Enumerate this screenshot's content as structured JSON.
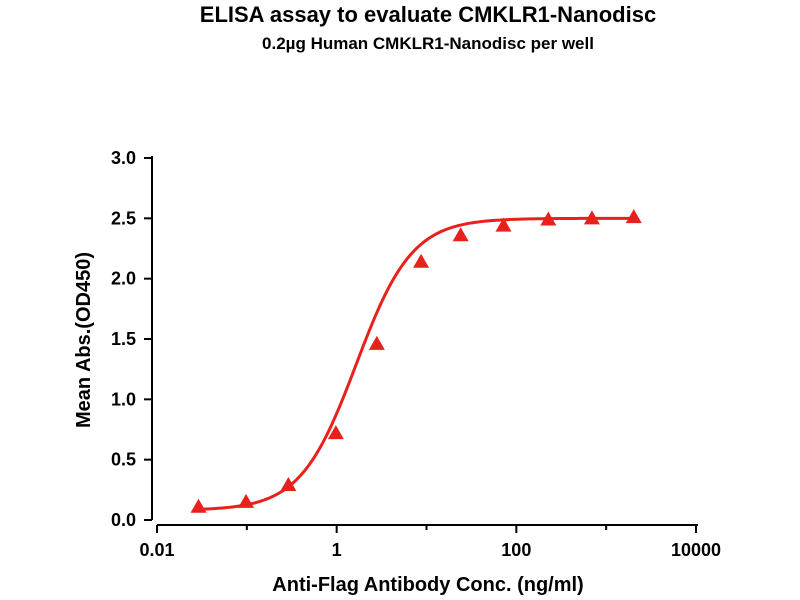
{
  "chart_data": {
    "type": "scatter",
    "title": "ELISA assay to evaluate CMKLR1-Nanodisc",
    "subtitle": "0.2µg Human CMKLR1-Nanodisc per well",
    "xlabel": "Anti-Flag Antibody Conc. (ng/ml)",
    "ylabel": "Mean Abs.(OD450)",
    "x_scale": "log",
    "xlim": [
      0.01,
      10000
    ],
    "ylim": [
      0,
      3.0
    ],
    "x_ticks": [
      0.01,
      1,
      100,
      10000
    ],
    "x_tick_labels": [
      "0.01",
      "1",
      "100",
      "10000"
    ],
    "y_ticks": [
      0,
      0.5,
      1.0,
      1.5,
      2.0,
      2.5,
      3.0
    ],
    "y_tick_labels": [
      "0.0",
      "0.5",
      "1.0",
      "1.5",
      "2.0",
      "2.5",
      "3.0"
    ],
    "grid": false,
    "color": "#e8211c",
    "marker": "triangle",
    "series": [
      {
        "x": [
          0.029,
          0.098,
          0.29,
          0.98,
          2.8,
          8.7,
          24,
          72,
          227,
          694,
          2030
        ],
        "y": [
          0.11,
          0.15,
          0.29,
          0.72,
          1.46,
          2.14,
          2.36,
          2.44,
          2.49,
          2.5,
          2.51
        ],
        "fit": "4PL sigmoid"
      }
    ]
  }
}
